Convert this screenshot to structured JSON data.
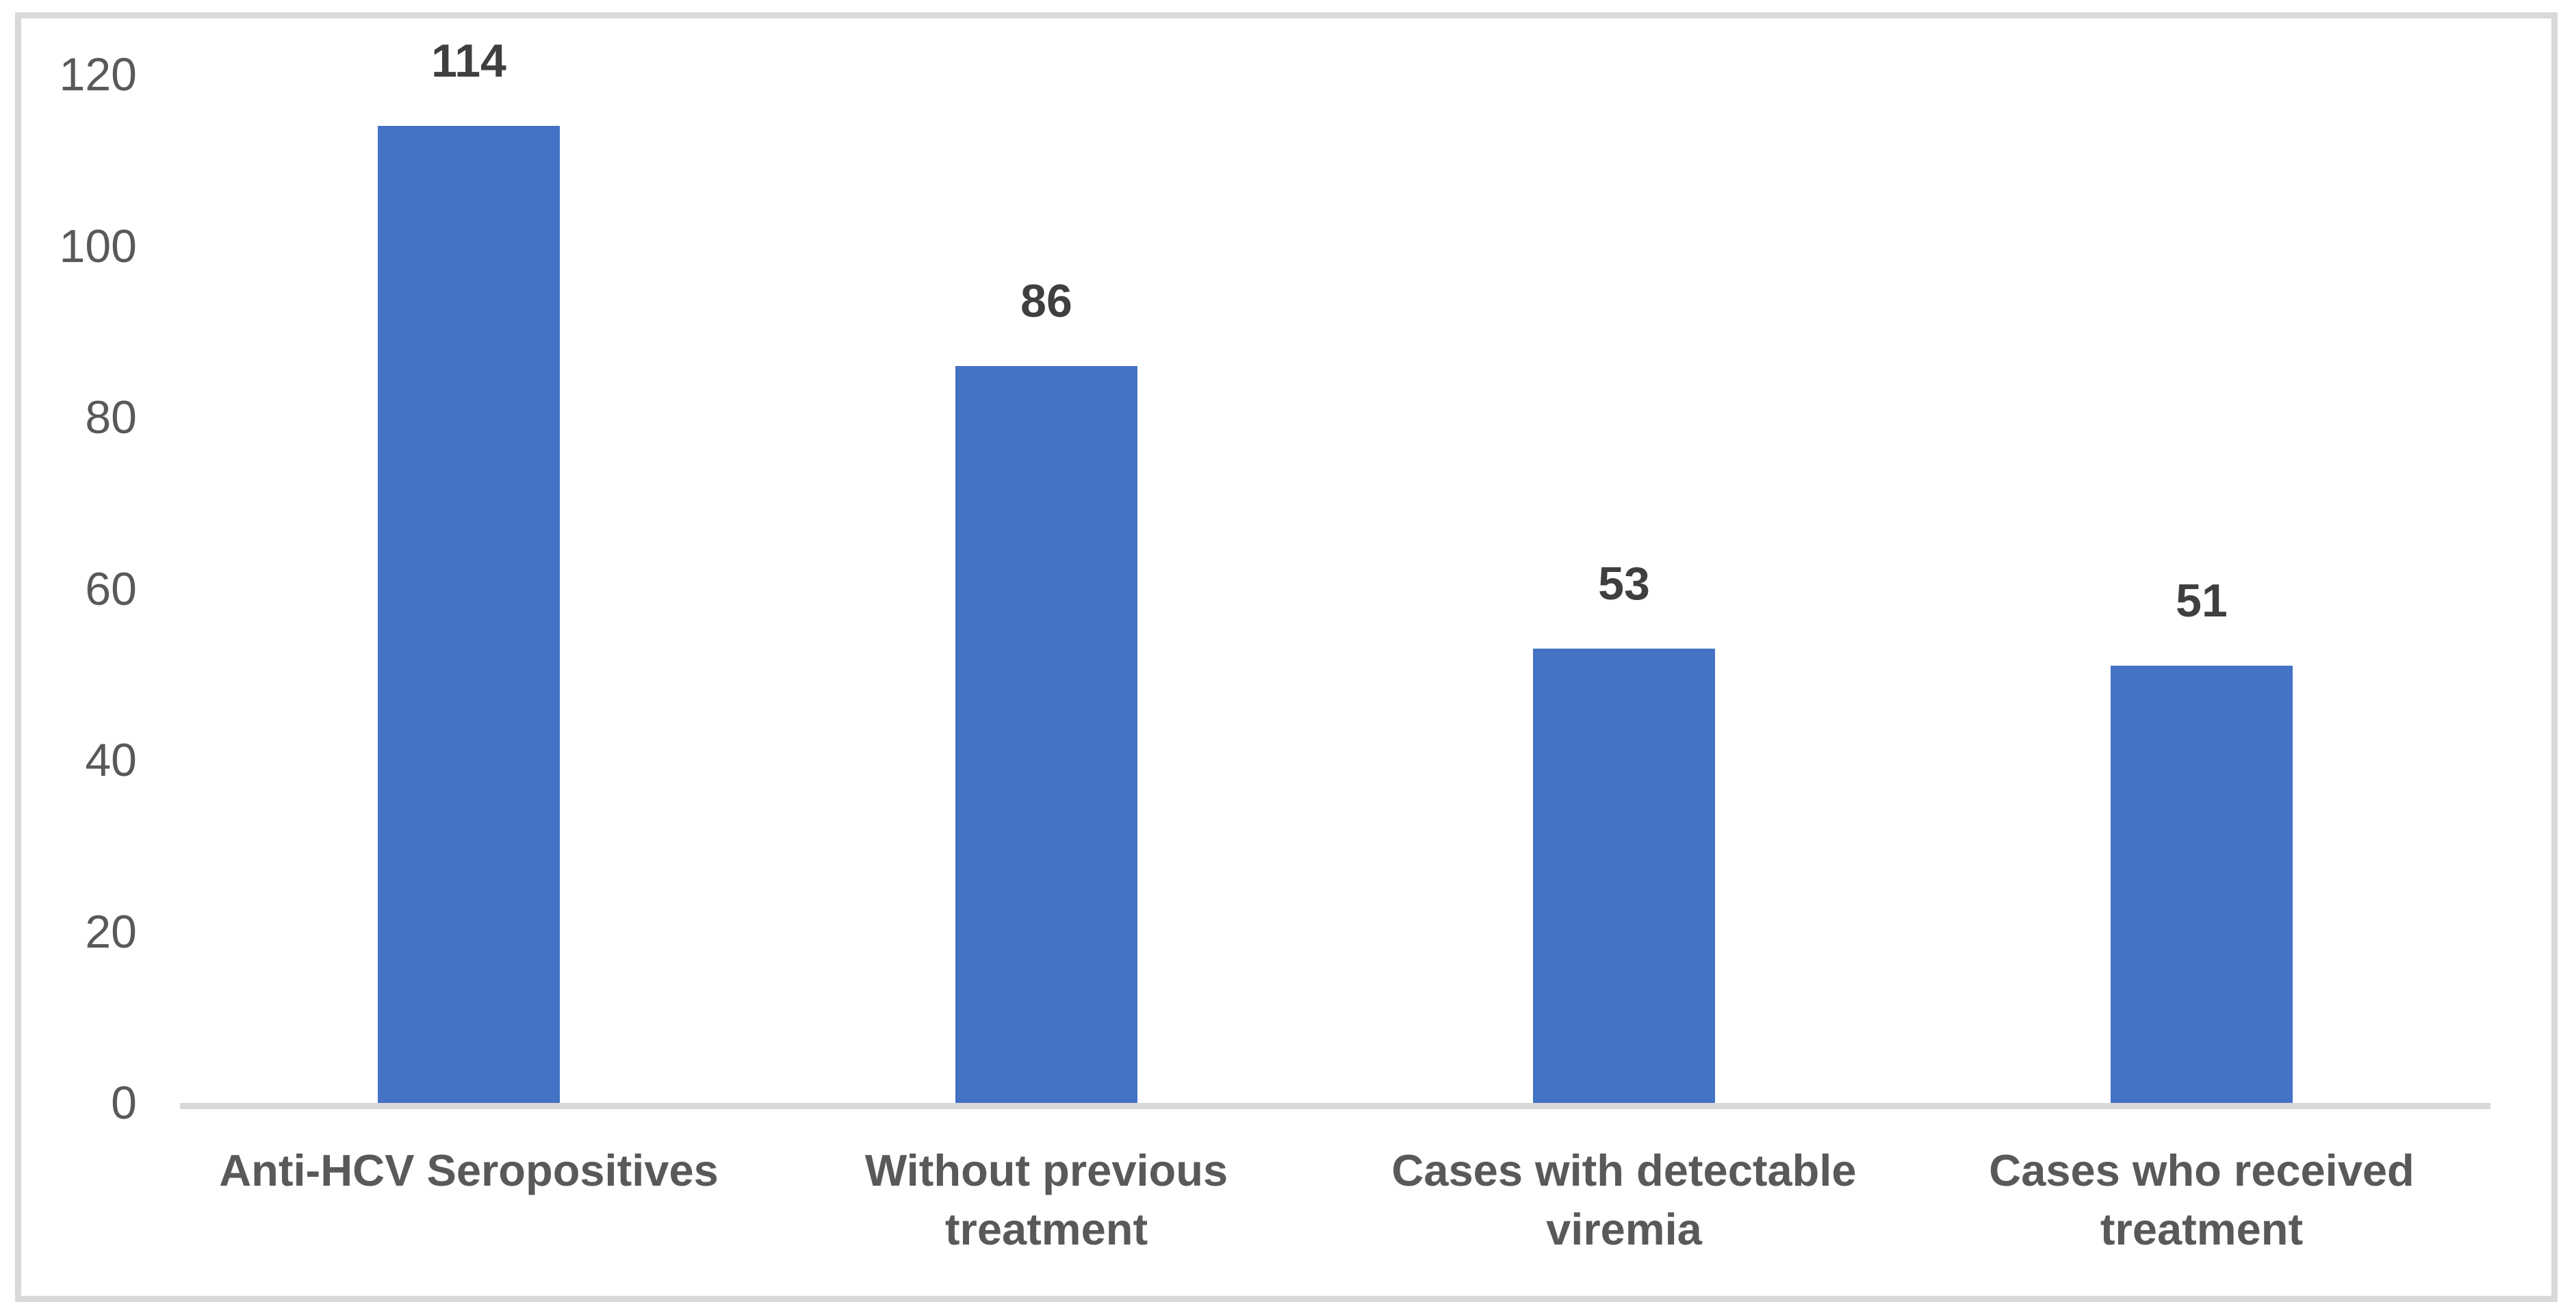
{
  "chart_data": {
    "type": "bar",
    "categories": [
      "Anti-HCV Seropositives",
      "Without previous treatment",
      "Cases with detectable viremia",
      "Cases who received treatment"
    ],
    "label_lines": [
      [
        "Anti-HCV Seropositives"
      ],
      [
        "Without previous",
        "treatment"
      ],
      [
        "Cases with detectable",
        "viremia"
      ],
      [
        "Cases who received",
        "treatment"
      ]
    ],
    "values": [
      114,
      86,
      53,
      51
    ],
    "data_labels": [
      "114",
      "86",
      "53",
      "51"
    ],
    "ylim": [
      0,
      120
    ],
    "yticks": [
      0,
      20,
      40,
      60,
      80,
      100,
      120
    ],
    "grid": false,
    "legend": false,
    "colors": {
      "bar": "#4472C4",
      "axis_line": "#D9D9D9",
      "frame_border": "#D9D9D9",
      "tick_label": "#595959",
      "value_label": "#3F3F3F",
      "category_label": "#595959"
    }
  }
}
